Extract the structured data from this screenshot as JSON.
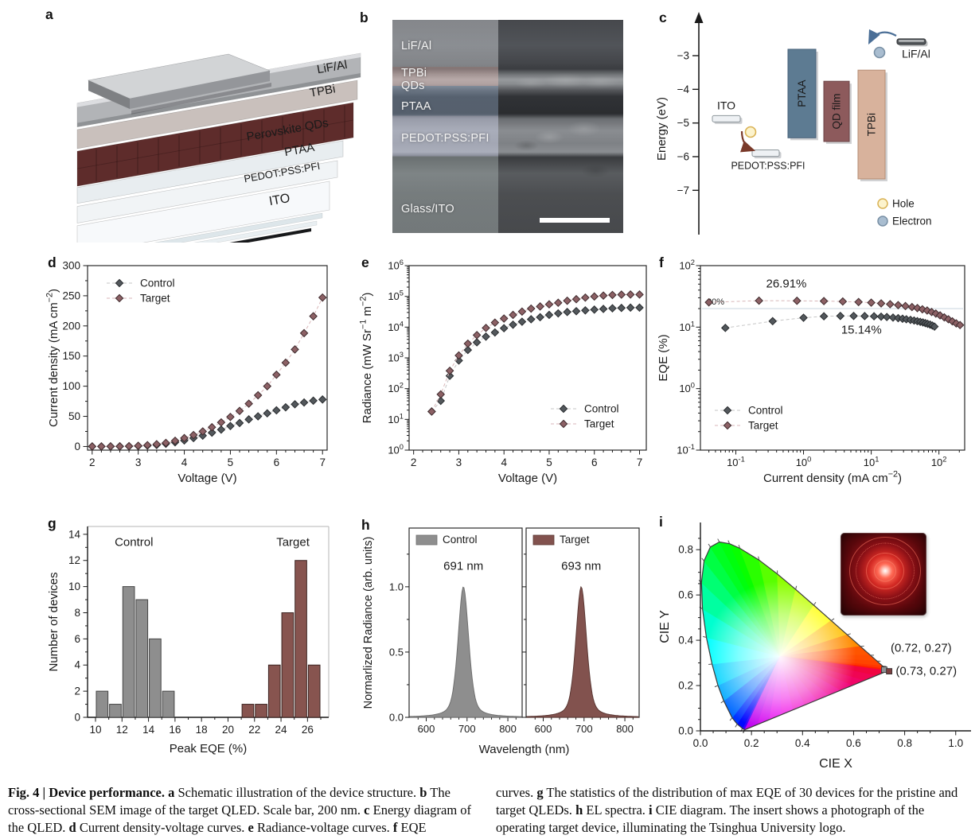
{
  "figure": {
    "caption": {
      "left": [
        {
          "t": "Fig. 4 | Device performance. ",
          "b": true
        },
        {
          "t": "a",
          "b": true
        },
        {
          "t": " Schematic illustration of the device structure. "
        },
        {
          "t": "b",
          "b": true
        },
        {
          "t": " The cross-sectional SEM image of the target QLED. Scale bar, 200 nm. "
        },
        {
          "t": "c",
          "b": true
        },
        {
          "t": " Energy diagram of the QLED. "
        },
        {
          "t": "d",
          "b": true
        },
        {
          "t": " Current density-voltage curves. "
        },
        {
          "t": "e",
          "b": true
        },
        {
          "t": " Radiance-voltage curves. "
        },
        {
          "t": "f",
          "b": true
        },
        {
          "t": " EQE"
        }
      ],
      "right": [
        {
          "t": "curves. "
        },
        {
          "t": "g",
          "b": true
        },
        {
          "t": " The statistics of the distribution of max EQE of 30 devices for the pristine and target QLEDs. "
        },
        {
          "t": "h",
          "b": true
        },
        {
          "t": " EL spectra. "
        },
        {
          "t": "i",
          "b": true
        },
        {
          "t": " CIE diagram. The insert shows a photograph of the operating target device, illuminating the Tsinghua University logo."
        }
      ]
    }
  },
  "colors": {
    "control_fill": "#53585c",
    "control_edge": "#292c2f",
    "control_line": "#c6c6c6",
    "target_fill": "#8c6165",
    "target_edge": "#3f2b2e",
    "target_line": "#d8b6b8",
    "hist_control": "#8e8e8e",
    "hist_control_edge": "#444444",
    "hist_target": "#87544f",
    "hist_target_edge": "#3c2522",
    "spec_control": "#8e8e8e",
    "spec_control_edge": "#6f6f6f",
    "spec_target": "#82524e",
    "spec_target_edge": "#5a3733",
    "ref_line": "#d8e1e7",
    "ref_text": "#b9c6cf",
    "annot_gray": "#8f9396",
    "annot_red": "#8a5a5a"
  },
  "panels": {
    "a": {
      "letter": "a",
      "layers": [
        {
          "name": "LiF/Al"
        },
        {
          "name": "TPBi"
        },
        {
          "name": "Perovskite QDs"
        },
        {
          "name": "PTAA"
        },
        {
          "name": "PEDOT:PSS:PFI"
        },
        {
          "name": "ITO"
        }
      ]
    },
    "b": {
      "letter": "b",
      "labels": [
        {
          "text": "LiF/Al",
          "y": 9.5
        },
        {
          "text": "TPBi",
          "y": 22.0
        },
        {
          "text": "QDs",
          "y": 28.0
        },
        {
          "text": "PTAA",
          "y": 37.5
        },
        {
          "text": "PEDOT:PSS:PFI",
          "y": 52.5
        },
        {
          "text": "Glass/ITO",
          "y": 86.0
        }
      ]
    },
    "c": {
      "letter": "c",
      "y_label": "Energy (eV)",
      "ticks": [
        "−3",
        "−4",
        "−5",
        "−6",
        "−7"
      ],
      "tick_values": [
        -3,
        -4,
        -5,
        -6,
        -7
      ],
      "bars": [
        {
          "name": "ITO",
          "kind": "slab",
          "x": 75,
          "w": 35,
          "e": [
            -4.78,
            -4.97
          ],
          "label_pos": "above"
        },
        {
          "name": "PEDOT:PSS:PFI",
          "kind": "slab",
          "x": 125,
          "w": 34,
          "e": [
            -5.8,
            -5.99
          ],
          "label_pos": "below"
        },
        {
          "name": "PTAA",
          "kind": "block",
          "x": 170,
          "w": 35,
          "e": [
            -2.81,
            -5.44
          ],
          "fill": "#5d7b92",
          "edge": "#46607a",
          "text": "#f5f7f8"
        },
        {
          "name": "QD film",
          "kind": "block",
          "x": 215,
          "w": 32,
          "e": [
            -3.76,
            -5.55
          ],
          "fill": "#8d5a5c",
          "edge": "#6b4244",
          "text": "#f5eff0"
        },
        {
          "name": "TPBi",
          "kind": "block",
          "x": 258,
          "w": 34,
          "e": [
            -3.43,
            -6.66
          ],
          "fill": "#d8b29c",
          "edge": "#b68e74",
          "text": "#3f3f3f"
        },
        {
          "name": "LiF/Al",
          "kind": "metal",
          "x": 307,
          "w": 36,
          "e": [
            -2.5,
            -2.66
          ],
          "label_pos": "below"
        }
      ],
      "legend": [
        {
          "label": "Hole",
          "fill": "#fcf3cd",
          "edge": "#d9b254"
        },
        {
          "label": "Electron",
          "fill": "#a9bdd0",
          "edge": "#7990a5"
        }
      ]
    },
    "d": {
      "letter": "d"
    },
    "e": {
      "letter": "e"
    },
    "f": {
      "letter": "f"
    },
    "g": {
      "letter": "g"
    },
    "h": {
      "letter": "h"
    },
    "i": {
      "letter": "i"
    }
  },
  "chart_data": {
    "d": {
      "type": "scatter",
      "x_label": "Voltage (V)",
      "y_label_parts": [
        {
          "t": "Current density (mA cm"
        },
        {
          "t": "−2",
          "sup": true
        },
        {
          "t": ")"
        }
      ],
      "x_range": [
        1.9,
        7.1
      ],
      "y_range": [
        -6,
        300
      ],
      "x_ticks": [
        2,
        3,
        4,
        5,
        6,
        7
      ],
      "y_ticks": [
        0,
        50,
        100,
        150,
        200,
        250,
        300
      ],
      "legend_pos": "top-left",
      "x": [
        2.0,
        2.2,
        2.4,
        2.6,
        2.8,
        3.0,
        3.2,
        3.4,
        3.6,
        3.8,
        4.0,
        4.2,
        4.4,
        4.6,
        4.8,
        5.0,
        5.2,
        5.4,
        5.6,
        5.8,
        6.0,
        6.2,
        6.4,
        6.6,
        6.8,
        7.0
      ],
      "series": [
        {
          "name": "Control",
          "y": [
            0.1,
            0.1,
            0.15,
            0.2,
            0.4,
            0.8,
            1.5,
            2.5,
            4.5,
            7,
            10,
            14,
            18,
            23,
            28,
            34,
            39,
            45,
            50,
            55,
            60,
            65,
            70,
            73,
            76,
            78
          ]
        },
        {
          "name": "Target",
          "y": [
            0.1,
            0.1,
            0.2,
            0.3,
            0.6,
            1.2,
            2.2,
            3.8,
            6,
            9.5,
            14,
            19,
            25,
            32,
            40,
            49,
            59,
            71,
            85,
            100,
            119,
            139,
            161,
            188,
            216,
            247
          ]
        }
      ]
    },
    "e": {
      "type": "scatter-logy",
      "x_label": "Voltage (V)",
      "y_label_parts": [
        {
          "t": "Radiance (mW Sr"
        },
        {
          "t": "−1",
          "sup": true
        },
        {
          "t": " m"
        },
        {
          "t": "−2",
          "sup": true
        },
        {
          "t": ")"
        }
      ],
      "x_range": [
        1.9,
        7.15
      ],
      "y_exp_range": [
        0,
        6
      ],
      "x_ticks": [
        2,
        3,
        4,
        5,
        6,
        7
      ],
      "legend_pos": "bottom-right",
      "x": [
        2.4,
        2.6,
        2.8,
        3.0,
        3.2,
        3.4,
        3.6,
        3.8,
        4.0,
        4.2,
        4.4,
        4.6,
        4.8,
        5.0,
        5.2,
        5.4,
        5.6,
        5.8,
        6.0,
        6.2,
        6.4,
        6.6,
        6.8,
        7.0
      ],
      "series": [
        {
          "name": "Control",
          "y": [
            18,
            40,
            260,
            820,
            1800,
            3200,
            4900,
            6700,
            9200,
            12000,
            15000,
            18000,
            21000,
            25000,
            28000,
            31000,
            33000,
            35000,
            37000,
            39000,
            41000,
            42000,
            43000,
            43000
          ]
        },
        {
          "name": "Target",
          "y": [
            18,
            65,
            380,
            1200,
            2900,
            5500,
            9400,
            14000,
            19000,
            25000,
            32000,
            40000,
            47000,
            55000,
            62000,
            72000,
            81000,
            91000,
            99000,
            106000,
            111000,
            114000,
            115000,
            115000
          ]
        }
      ]
    },
    "f": {
      "type": "scatter-loglog",
      "x_label_parts": [
        {
          "t": "Current density (mA cm"
        },
        {
          "t": "−2",
          "sup": true
        },
        {
          "t": ")"
        }
      ],
      "y_label": "EQE (%)",
      "x_range": [
        0.03,
        240
      ],
      "y_range": [
        0.1,
        100
      ],
      "ref_line": {
        "y": 20,
        "label": "20%"
      },
      "annotations": [
        {
          "text": "26.91%",
          "x": 0.28,
          "y": 44,
          "color": "annot_red",
          "size": 15
        },
        {
          "text": "15.14%",
          "x": 3.6,
          "y": 7.9,
          "color": "annot_gray",
          "size": 15
        }
      ],
      "legend_pos": "bottom-left",
      "series": [
        {
          "name": "Control",
          "x": [
            0.07,
            0.35,
            1.0,
            2.0,
            3.5,
            5.5,
            8,
            11,
            14,
            17,
            21,
            25,
            29,
            33,
            38,
            43,
            48,
            53,
            58,
            63,
            68,
            74,
            80,
            86
          ],
          "y": [
            9.7,
            12.5,
            14.2,
            15.0,
            15.2,
            15.2,
            15.1,
            15.0,
            14.8,
            14.6,
            14.3,
            14.0,
            13.7,
            13.4,
            13.1,
            12.8,
            12.5,
            12.2,
            11.9,
            11.6,
            11.3,
            11.0,
            10.6,
            10.2
          ]
        },
        {
          "name": "Target",
          "x": [
            0.04,
            0.22,
            0.8,
            2.0,
            3.8,
            6.5,
            10,
            14,
            19,
            25,
            32,
            40,
            48,
            57,
            67,
            78,
            90,
            104,
            120,
            138,
            158,
            180,
            205
          ],
          "y": [
            25.3,
            26.9,
            26.8,
            26.5,
            26.1,
            25.6,
            25.0,
            24.3,
            23.6,
            22.8,
            22.0,
            21.2,
            20.4,
            19.5,
            18.6,
            17.6,
            16.6,
            15.5,
            14.4,
            13.4,
            12.4,
            11.5,
            10.8
          ]
        }
      ]
    },
    "g": {
      "type": "bar",
      "x_label": "Peak EQE (%)",
      "y_label": "Number of devices",
      "x_range": [
        9.4,
        27.6
      ],
      "y_range": [
        0,
        14.6
      ],
      "x_ticks": [
        10,
        12,
        14,
        16,
        18,
        20,
        22,
        24,
        26
      ],
      "y_ticks": [
        0,
        2,
        4,
        6,
        8,
        10,
        12,
        14
      ],
      "in_labels": [
        {
          "text": "Control",
          "x": 12.9,
          "y": 13.1
        },
        {
          "text": "Target",
          "x": 24.9,
          "y": 13.1
        }
      ],
      "series": [
        {
          "name": "Control",
          "centers": [
            10.5,
            11.5,
            12.5,
            13.5,
            14.5,
            15.5
          ],
          "counts": [
            2,
            1,
            10,
            9,
            6,
            2
          ]
        },
        {
          "name": "Target",
          "centers": [
            21.5,
            22.5,
            23.5,
            24.5,
            25.5,
            26.5
          ],
          "counts": [
            1,
            1,
            4,
            8,
            12,
            4
          ]
        }
      ]
    },
    "h": {
      "type": "area-peaks",
      "x_label": "Wavelength (nm)",
      "y_label": "Normarlized Radiance (arb. units)",
      "x_range": [
        558,
        835
      ],
      "y_range": [
        0,
        1.45
      ],
      "x_ticks": [
        600,
        700,
        800
      ],
      "y_ticks": [
        0.0,
        0.5,
        1.0
      ],
      "subplots": [
        {
          "name": "Control",
          "peak_label": "691 nm",
          "center": 691,
          "fwhm": 31
        },
        {
          "name": "Target",
          "peak_label": "693 nm",
          "center": 693,
          "fwhm": 31
        }
      ]
    },
    "i": {
      "type": "cie",
      "x_label": "CIE X",
      "y_label": "CIE Y",
      "x_ticks": [
        0.0,
        0.2,
        0.4,
        0.6,
        0.8,
        1.0
      ],
      "y_ticks": [
        0.0,
        0.2,
        0.4,
        0.6,
        0.8
      ],
      "white_point": [
        0.3127,
        0.329
      ],
      "locus": [
        [
          380,
          0.1741,
          0.005
        ],
        [
          410,
          0.1726,
          0.0048
        ],
        [
          440,
          0.1644,
          0.0109
        ],
        [
          460,
          0.144,
          0.0297
        ],
        [
          470,
          0.1241,
          0.0578
        ],
        [
          480,
          0.0913,
          0.1327
        ],
        [
          485,
          0.0687,
          0.2007
        ],
        [
          490,
          0.0454,
          0.295
        ],
        [
          495,
          0.0235,
          0.4127
        ],
        [
          500,
          0.0082,
          0.5384
        ],
        [
          505,
          0.0039,
          0.6548
        ],
        [
          510,
          0.0139,
          0.7502
        ],
        [
          515,
          0.0389,
          0.812
        ],
        [
          520,
          0.0743,
          0.8338
        ],
        [
          525,
          0.1142,
          0.8262
        ],
        [
          530,
          0.1547,
          0.8059
        ],
        [
          540,
          0.2296,
          0.7543
        ],
        [
          550,
          0.3016,
          0.6923
        ],
        [
          560,
          0.3731,
          0.6245
        ],
        [
          570,
          0.4441,
          0.5547
        ],
        [
          580,
          0.5125,
          0.4866
        ],
        [
          590,
          0.5752,
          0.4242
        ],
        [
          600,
          0.627,
          0.3725
        ],
        [
          610,
          0.6658,
          0.334
        ],
        [
          620,
          0.6915,
          0.3083
        ],
        [
          635,
          0.714,
          0.2859
        ],
        [
          650,
          0.726,
          0.274
        ],
        [
          700,
          0.7347,
          0.2653
        ]
      ],
      "points": [
        {
          "label": "(0.72, 0.27)",
          "x": 0.72,
          "y": 0.27,
          "color": "annot_gray",
          "label_at": [
            0.745,
            0.35
          ]
        },
        {
          "label": "(0.73, 0.27)",
          "x": 0.73,
          "y": 0.27,
          "color": "annot_red",
          "label_at": [
            0.765,
            0.248
          ]
        }
      ]
    }
  }
}
